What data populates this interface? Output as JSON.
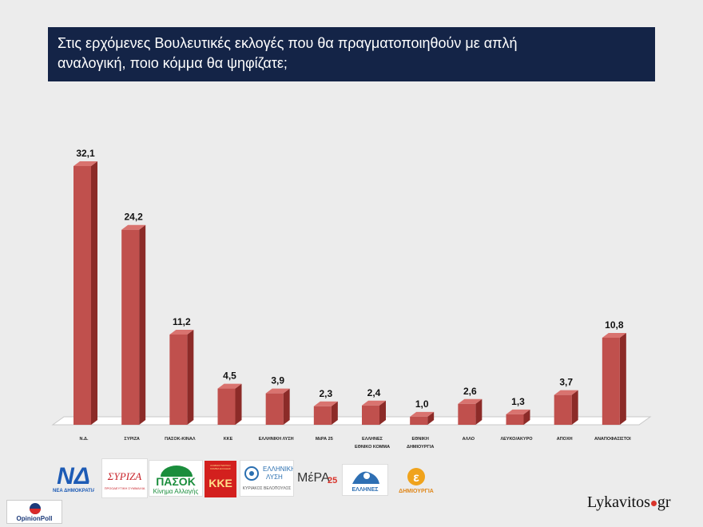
{
  "title": {
    "line1": "Στις ερχόμενες Βουλευτικές εκλογές που θα πραγματοποιηθούν με απλή",
    "line2": "αναλογική, ποιο κόμμα θα ψηφίζατε;"
  },
  "colors": {
    "title_bg": "#142447",
    "bar_front": "#c0504d",
    "bar_side": "#8c2b28",
    "bar_top": "#d9736f",
    "floor": "#ffffff",
    "background": "#ececec"
  },
  "chart_data": {
    "type": "bar",
    "title": "Στις ερχόμενες Βουλευτικές εκλογές που θα πραγματοποιηθούν με απλή αναλογική, ποιο κόμμα θα ψηφίζατε;",
    "categories": [
      [
        "Ν.Δ."
      ],
      [
        "ΣΥΡΙΖΑ"
      ],
      [
        "ΠΑΣΟΚ-ΚΙΝΑΛ"
      ],
      [
        "ΚΚΕ"
      ],
      [
        "ΕΛΛΗΝΙΚΗ ΛΥΣΗ"
      ],
      [
        "ΜέΡΑ 25"
      ],
      [
        "ΕΛΛΗΝΕΣ",
        "ΕΘΝΙΚΟ ΚΟΜΜΑ"
      ],
      [
        "ΕΘΝΙΚΗ",
        "ΔΗΜΙΟΥΡΓΙΑ"
      ],
      [
        "ΑΛΛΟ"
      ],
      [
        "ΛΕΥΚΟ/ΑΚΥΡΟ"
      ],
      [
        "ΑΠΟΧΗ"
      ],
      [
        "ΑΝΑΠΟΦΑΣΙΣΤΟΙ"
      ]
    ],
    "values": [
      32.1,
      24.2,
      11.2,
      4.5,
      3.9,
      2.3,
      2.4,
      1.0,
      2.6,
      1.3,
      3.7,
      10.8
    ],
    "value_labels": [
      "32,1",
      "24,2",
      "11,2",
      "4,5",
      "3,9",
      "2,3",
      "2,4",
      "1,0",
      "2,6",
      "1,3",
      "3,7",
      "10,8"
    ],
    "xlabel": "",
    "ylabel": "",
    "ylim": [
      0,
      33
    ],
    "grid": false,
    "legend": "none"
  },
  "logos": {
    "nd": {
      "symbol": "ΝΔ",
      "caption": "ΝΕΑ ΔΗΜΟΚΡΑΤΙΑ"
    },
    "syriza": {
      "symbol": "ΣΥΡΙΖΑ",
      "caption": "ΠΡΟΟΔΕΥΤΙΚΗ ΣΥΜΜΑΧΙΑ"
    },
    "pasok": {
      "symbol": "ΠΑΣΟΚ",
      "caption": "Κίνημα Αλλαγής"
    },
    "kke": {
      "symbol": "ΚΚΕ",
      "caption": "ΚΟΜΜΟΥΝΙΣΤΙΚΟ ΚΟΜΜΑ ΕΛΛΑΔΑΣ"
    },
    "elliniki_lysi": {
      "line1": "ΕΛΛΗΝΙΚΗ",
      "line2": "ΛΥΣΗ",
      "caption": "ΚΥΡΙΑΚΟΣ ΒΕΛΟΠΟΥΛΟΣ"
    },
    "mera25": {
      "symbol": "ΜέΡΑ",
      "number": "25"
    },
    "ellines": {
      "caption": "ΕΛΛΗΝΕΣ"
    },
    "dimiourgia": {
      "symbol": "ε",
      "caption": "ΔΗΜΙΟΥΡΓΙΑ"
    }
  },
  "footer": {
    "brand_left": "Lykavitos",
    "brand_right": "gr",
    "source": "OpinionPoll"
  }
}
